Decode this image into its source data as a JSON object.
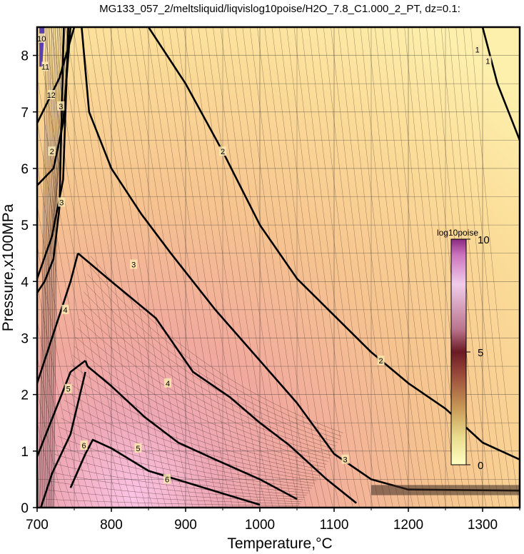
{
  "chart_data": {
    "type": "contour",
    "title": "MG133_057_2/meltsliquid/liqvislog10poise/H2O_7.8_C1.000_2_PT, dz=0.1:",
    "xlabel": "Temperature,°C",
    "ylabel": "Pressure,x100MPa",
    "xlim": [
      700,
      1350
    ],
    "ylim": [
      0,
      8.5
    ],
    "x_ticks": [
      700,
      800,
      900,
      1000,
      1100,
      1200,
      1300
    ],
    "y_ticks": [
      0,
      1,
      2,
      3,
      4,
      5,
      6,
      7,
      8
    ],
    "grid": true,
    "z_label": "log10poise",
    "z_range": [
      0,
      10
    ],
    "z_ticks": [
      0,
      5,
      10
    ],
    "contour_interval": 0.1,
    "colormap": [
      "#fdfdc0",
      "#f7c87a",
      "#e39a6d",
      "#c76b7a",
      "#e6b9e5",
      "#fbf2fb"
    ],
    "major_contours": [
      {
        "level": 1,
        "points": [
          [
            1300,
            8.5
          ],
          [
            1310,
            8.0
          ],
          [
            1320,
            7.5
          ],
          [
            1335,
            7.0
          ],
          [
            1350,
            6.5
          ]
        ]
      },
      {
        "level": 2,
        "points": [
          [
            850,
            8.5
          ],
          [
            900,
            7.5
          ],
          [
            950,
            6.3
          ],
          [
            1000,
            5.0
          ],
          [
            1050,
            4.05
          ],
          [
            1100,
            3.4
          ],
          [
            1150,
            2.75
          ],
          [
            1200,
            2.2
          ],
          [
            1250,
            1.75
          ],
          [
            1300,
            1.15
          ],
          [
            1350,
            0.85
          ]
        ]
      },
      {
        "level": 3,
        "points": [
          [
            760,
            8.5
          ],
          [
            770,
            7.0
          ],
          [
            800,
            6.0
          ],
          [
            840,
            5.2
          ],
          [
            880,
            4.5
          ],
          [
            940,
            3.5
          ],
          [
            1000,
            2.6
          ],
          [
            1050,
            1.85
          ],
          [
            1100,
            0.95
          ],
          [
            1150,
            0.5
          ],
          [
            1200,
            0.32
          ],
          [
            1350,
            0.3
          ]
        ]
      },
      {
        "level": 4,
        "points": [
          [
            755,
            4.5
          ],
          [
            800,
            4.0
          ],
          [
            860,
            3.35
          ],
          [
            910,
            2.4
          ],
          [
            960,
            1.95
          ],
          [
            1000,
            1.5
          ],
          [
            1040,
            1.1
          ],
          [
            1090,
            0.5
          ],
          [
            1130,
            0.08
          ]
        ]
      },
      {
        "level": 5,
        "points": [
          [
            765,
            2.6
          ],
          [
            768,
            2.5
          ],
          [
            800,
            2.15
          ],
          [
            845,
            1.6
          ],
          [
            890,
            1.15
          ],
          [
            940,
            0.85
          ],
          [
            1000,
            0.5
          ],
          [
            1050,
            0.15
          ]
        ]
      },
      {
        "level": 6,
        "points": [
          [
            745,
            0.35
          ],
          [
            765,
            0.95
          ],
          [
            775,
            1.2
          ],
          [
            800,
            1.05
          ],
          [
            850,
            0.65
          ],
          [
            900,
            0.45
          ],
          [
            950,
            0.25
          ],
          [
            1000,
            0.05
          ]
        ]
      },
      {
        "level": 3,
        "points": [
          [
            700,
            6.8
          ],
          [
            730,
            7.6
          ],
          [
            750,
            8.5
          ]
        ]
      },
      {
        "level": 3,
        "points": [
          [
            700,
            5.7
          ],
          [
            722,
            6.0
          ],
          [
            735,
            6.8
          ],
          [
            745,
            8.5
          ]
        ]
      },
      {
        "level": 3,
        "points": [
          [
            700,
            4.05
          ],
          [
            720,
            4.8
          ],
          [
            735,
            5.8
          ],
          [
            742,
            8.5
          ]
        ]
      },
      {
        "level": 4,
        "points": [
          [
            700,
            3.8
          ],
          [
            710,
            4.0
          ],
          [
            722,
            4.4
          ],
          [
            730,
            5.3
          ],
          [
            736,
            8.5
          ]
        ]
      },
      {
        "level": 5,
        "points": [
          [
            700,
            2.2
          ],
          [
            720,
            3.0
          ],
          [
            745,
            4.0
          ],
          [
            755,
            4.5
          ]
        ]
      },
      {
        "level": 5,
        "points": [
          [
            700,
            0.9
          ],
          [
            745,
            2.4
          ],
          [
            765,
            2.6
          ]
        ]
      },
      {
        "level": 6,
        "points": [
          [
            705,
            0.0
          ],
          [
            720,
            0.6
          ],
          [
            745,
            1.3
          ],
          [
            765,
            2.4
          ]
        ]
      }
    ],
    "contour_labels": [
      {
        "text": "1",
        "x": 1307,
        "y": 7.9
      },
      {
        "text": "1",
        "x": 1293,
        "y": 8.1
      },
      {
        "text": "2",
        "x": 950,
        "y": 6.3
      },
      {
        "text": "2",
        "x": 1163,
        "y": 2.6
      },
      {
        "text": "2",
        "x": 720,
        "y": 6.3
      },
      {
        "text": "3",
        "x": 830,
        "y": 4.3
      },
      {
        "text": "3",
        "x": 1115,
        "y": 0.85
      },
      {
        "text": "3",
        "x": 732,
        "y": 7.1
      },
      {
        "text": "3",
        "x": 733,
        "y": 5.4
      },
      {
        "text": "4",
        "x": 738,
        "y": 3.5
      },
      {
        "text": "4",
        "x": 876,
        "y": 2.2
      },
      {
        "text": "5",
        "x": 742,
        "y": 2.1
      },
      {
        "text": "5",
        "x": 836,
        "y": 1.05
      },
      {
        "text": "6",
        "x": 763,
        "y": 1.1
      },
      {
        "text": "6",
        "x": 875,
        "y": 0.5
      },
      {
        "text": "10",
        "x": 706,
        "y": 8.3
      },
      {
        "text": "11",
        "x": 711,
        "y": 7.8
      },
      {
        "text": "12",
        "x": 719,
        "y": 7.3
      }
    ]
  }
}
